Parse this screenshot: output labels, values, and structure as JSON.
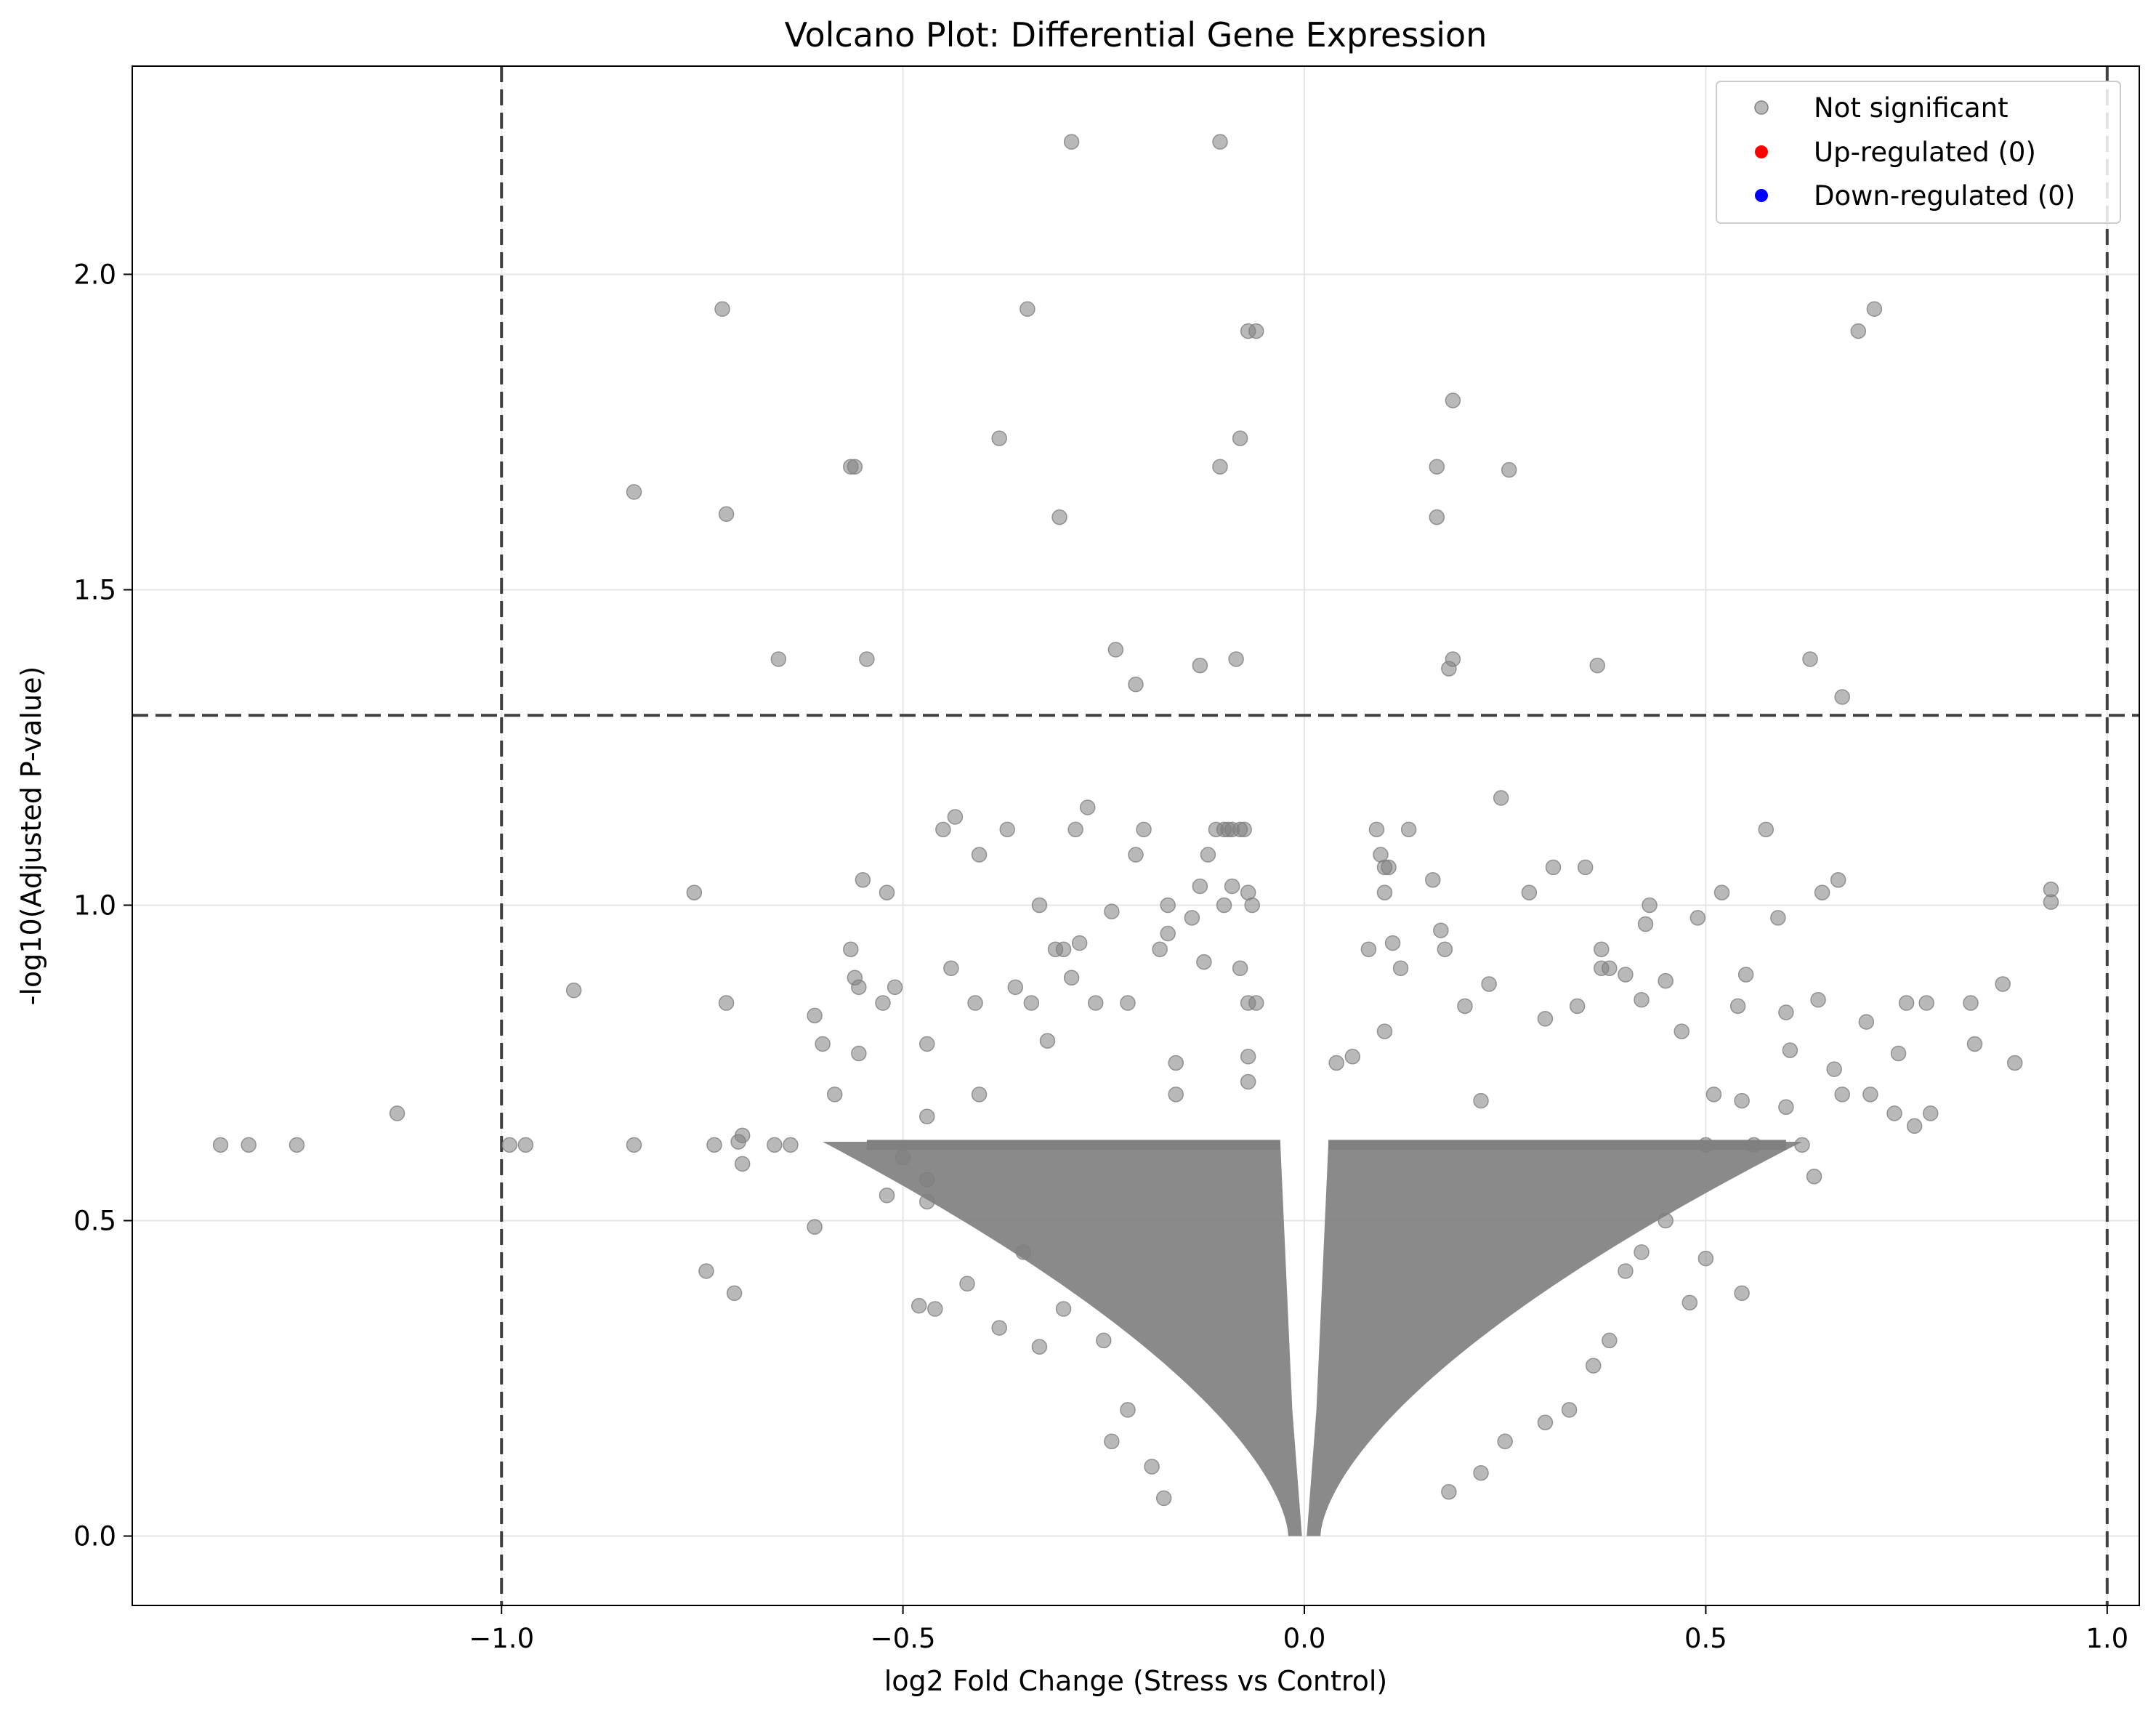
{
  "chart_data": {
    "type": "scatter",
    "title": "Volcano Plot: Differential Gene Expression",
    "xlabel": "log2 Fold Change (Stress vs Control)",
    "ylabel": "-log10(Adjusted P-value)",
    "xlim": [
      -1.46,
      1.04
    ],
    "ylim": [
      -0.11,
      2.33
    ],
    "x_ticks": [
      -1.0,
      -0.5,
      0.0,
      0.5,
      1.0
    ],
    "x_tick_labels": [
      "−1.0",
      "−0.5",
      "0.0",
      "0.5",
      "1.0"
    ],
    "y_ticks": [
      0.0,
      0.5,
      1.0,
      1.5,
      2.0
    ],
    "y_tick_labels": [
      "0.0",
      "0.5",
      "1.0",
      "1.5",
      "2.0"
    ],
    "grid": true,
    "legend_position": "top-right",
    "thresholds": {
      "fold_change": [
        -1.0,
        1.0
      ],
      "neg_log10_p": 1.301
    },
    "colors": {
      "not_significant": "#808080",
      "up": "#ff0000",
      "down": "#0000ff",
      "threshold_line": "#404040"
    },
    "series": [
      {
        "name": "Not significant",
        "color": "#808080",
        "points": [
          [
            -0.29,
            2.21
          ],
          [
            -0.105,
            2.21
          ],
          [
            -0.725,
            1.945
          ],
          [
            -0.345,
            1.945
          ],
          [
            0.71,
            1.945
          ],
          [
            -0.07,
            1.91
          ],
          [
            -0.06,
            1.91
          ],
          [
            0.69,
            1.91
          ],
          [
            0.185,
            1.8
          ],
          [
            -0.38,
            1.74
          ],
          [
            -0.08,
            1.74
          ],
          [
            -0.565,
            1.695
          ],
          [
            -0.56,
            1.695
          ],
          [
            -0.105,
            1.695
          ],
          [
            0.165,
            1.695
          ],
          [
            0.255,
            1.69
          ],
          [
            -0.835,
            1.655
          ],
          [
            -0.72,
            1.62
          ],
          [
            -0.305,
            1.615
          ],
          [
            0.165,
            1.615
          ],
          [
            -0.235,
            1.405
          ],
          [
            -0.655,
            1.39
          ],
          [
            -0.545,
            1.39
          ],
          [
            -0.085,
            1.39
          ],
          [
            0.185,
            1.39
          ],
          [
            0.63,
            1.39
          ],
          [
            -0.13,
            1.38
          ],
          [
            0.18,
            1.375
          ],
          [
            0.365,
            1.38
          ],
          [
            0.67,
            1.33
          ],
          [
            -0.21,
            1.35
          ],
          [
            -1.35,
            0.62
          ],
          [
            -1.315,
            0.62
          ],
          [
            -1.255,
            0.62
          ],
          [
            -1.13,
            0.67
          ],
          [
            -0.99,
            0.62
          ],
          [
            -0.97,
            0.62
          ],
          [
            -0.91,
            0.865
          ],
          [
            -0.835,
            0.62
          ],
          [
            -0.76,
            1.02
          ],
          [
            -0.745,
            0.42
          ],
          [
            -0.735,
            0.62
          ],
          [
            -0.72,
            0.845
          ],
          [
            -0.71,
            0.385
          ],
          [
            -0.705,
            0.625
          ],
          [
            -0.7,
            0.635
          ],
          [
            -0.7,
            0.59
          ],
          [
            -0.66,
            0.62
          ],
          [
            -0.64,
            0.62
          ],
          [
            -0.61,
            0.49
          ],
          [
            -0.61,
            0.825
          ],
          [
            -0.6,
            0.78
          ],
          [
            -0.585,
            0.7
          ],
          [
            -0.565,
            0.93
          ],
          [
            -0.56,
            0.885
          ],
          [
            -0.555,
            0.87
          ],
          [
            -0.55,
            1.04
          ],
          [
            -0.555,
            0.765
          ],
          [
            -0.525,
            0.845
          ],
          [
            -0.52,
            1.02
          ],
          [
            -0.51,
            0.87
          ],
          [
            -0.47,
            0.665
          ],
          [
            -0.47,
            0.565
          ],
          [
            -0.47,
            0.53
          ],
          [
            -0.47,
            0.78
          ],
          [
            -0.44,
            0.9
          ],
          [
            -0.45,
            1.12
          ],
          [
            -0.435,
            1.14
          ],
          [
            -0.41,
            0.845
          ],
          [
            -0.405,
            1.08
          ],
          [
            -0.405,
            0.7
          ],
          [
            -0.37,
            1.12
          ],
          [
            -0.36,
            0.87
          ],
          [
            -0.34,
            0.845
          ],
          [
            -0.33,
            1.0
          ],
          [
            -0.32,
            0.785
          ],
          [
            -0.31,
            0.93
          ],
          [
            -0.3,
            0.93
          ],
          [
            -0.29,
            0.885
          ],
          [
            -0.285,
            1.12
          ],
          [
            -0.28,
            0.94
          ],
          [
            -0.27,
            1.155
          ],
          [
            -0.26,
            0.845
          ],
          [
            -0.24,
            0.99
          ],
          [
            -0.22,
            0.845
          ],
          [
            -0.21,
            1.08
          ],
          [
            -0.2,
            1.12
          ],
          [
            -0.18,
            0.93
          ],
          [
            -0.17,
            1.0
          ],
          [
            -0.17,
            0.955
          ],
          [
            -0.16,
            0.75
          ],
          [
            -0.16,
            0.7
          ],
          [
            -0.14,
            0.98
          ],
          [
            -0.13,
            1.03
          ],
          [
            -0.125,
            0.91
          ],
          [
            -0.12,
            1.08
          ],
          [
            -0.11,
            1.12
          ],
          [
            -0.1,
            1.12
          ],
          [
            -0.095,
            1.12
          ],
          [
            -0.09,
            1.12
          ],
          [
            -0.08,
            1.12
          ],
          [
            -0.075,
            1.12
          ],
          [
            -0.1,
            1.0
          ],
          [
            -0.09,
            1.03
          ],
          [
            -0.07,
            1.02
          ],
          [
            -0.065,
            1.0
          ],
          [
            -0.08,
            0.9
          ],
          [
            -0.07,
            0.845
          ],
          [
            -0.06,
            0.845
          ],
          [
            -0.07,
            0.76
          ],
          [
            -0.07,
            0.72
          ],
          [
            -0.35,
            0.45
          ],
          [
            -0.42,
            0.4
          ],
          [
            -0.46,
            0.36
          ],
          [
            -0.48,
            0.365
          ],
          [
            -0.5,
            0.6
          ],
          [
            -0.52,
            0.54
          ],
          [
            -0.38,
            0.33
          ],
          [
            -0.33,
            0.3
          ],
          [
            -0.3,
            0.36
          ],
          [
            -0.25,
            0.31
          ],
          [
            -0.22,
            0.2
          ],
          [
            -0.19,
            0.11
          ],
          [
            -0.175,
            0.06
          ],
          [
            -0.24,
            0.15
          ],
          [
            0.04,
            0.75
          ],
          [
            0.06,
            0.76
          ],
          [
            0.08,
            0.93
          ],
          [
            0.09,
            1.12
          ],
          [
            0.095,
            1.08
          ],
          [
            0.1,
            1.06
          ],
          [
            0.105,
            1.06
          ],
          [
            0.13,
            1.12
          ],
          [
            0.11,
            0.94
          ],
          [
            0.1,
            0.8
          ],
          [
            0.1,
            1.02
          ],
          [
            0.12,
            0.9
          ],
          [
            0.16,
            1.04
          ],
          [
            0.17,
            0.96
          ],
          [
            0.175,
            0.93
          ],
          [
            0.2,
            0.84
          ],
          [
            0.22,
            0.69
          ],
          [
            0.23,
            0.875
          ],
          [
            0.245,
            1.17
          ],
          [
            0.28,
            1.02
          ],
          [
            0.31,
            1.06
          ],
          [
            0.35,
            1.06
          ],
          [
            0.3,
            0.82
          ],
          [
            0.34,
            0.84
          ],
          [
            0.37,
            0.93
          ],
          [
            0.37,
            0.9
          ],
          [
            0.38,
            0.9
          ],
          [
            0.4,
            0.89
          ],
          [
            0.42,
            0.85
          ],
          [
            0.43,
            1.0
          ],
          [
            0.425,
            0.97
          ],
          [
            0.45,
            0.88
          ],
          [
            0.47,
            0.8
          ],
          [
            0.49,
            0.98
          ],
          [
            0.51,
            0.7
          ],
          [
            0.52,
            1.02
          ],
          [
            0.54,
            0.84
          ],
          [
            0.545,
            0.69
          ],
          [
            0.55,
            0.89
          ],
          [
            0.575,
            1.12
          ],
          [
            0.59,
            0.98
          ],
          [
            0.6,
            0.83
          ],
          [
            0.605,
            0.77
          ],
          [
            0.64,
            0.85
          ],
          [
            0.645,
            1.02
          ],
          [
            0.665,
            1.04
          ],
          [
            0.66,
            0.74
          ],
          [
            0.67,
            0.7
          ],
          [
            0.7,
            0.815
          ],
          [
            0.705,
            0.7
          ],
          [
            0.735,
            0.67
          ],
          [
            0.74,
            0.765
          ],
          [
            0.75,
            0.845
          ],
          [
            0.76,
            0.65
          ],
          [
            0.775,
            0.845
          ],
          [
            0.78,
            0.67
          ],
          [
            0.83,
            0.845
          ],
          [
            0.835,
            0.78
          ],
          [
            0.87,
            0.875
          ],
          [
            0.885,
            0.75
          ],
          [
            0.93,
            1.025
          ],
          [
            0.93,
            1.005
          ],
          [
            0.635,
            0.57
          ],
          [
            0.6,
            0.68
          ],
          [
            0.545,
            0.385
          ],
          [
            0.5,
            0.44
          ],
          [
            0.48,
            0.37
          ],
          [
            0.38,
            0.31
          ],
          [
            0.36,
            0.27
          ],
          [
            0.33,
            0.2
          ],
          [
            0.3,
            0.18
          ],
          [
            0.25,
            0.15
          ],
          [
            0.22,
            0.1
          ],
          [
            0.18,
            0.07
          ],
          [
            0.45,
            0.5
          ],
          [
            0.42,
            0.45
          ],
          [
            0.4,
            0.42
          ],
          [
            0.5,
            0.62
          ],
          [
            0.56,
            0.62
          ],
          [
            0.62,
            0.62
          ]
        ]
      },
      {
        "name": "Up-regulated (0)",
        "color": "#ff0000",
        "points": []
      },
      {
        "name": "Down-regulated (0)",
        "color": "#0000ff",
        "points": []
      }
    ]
  }
}
